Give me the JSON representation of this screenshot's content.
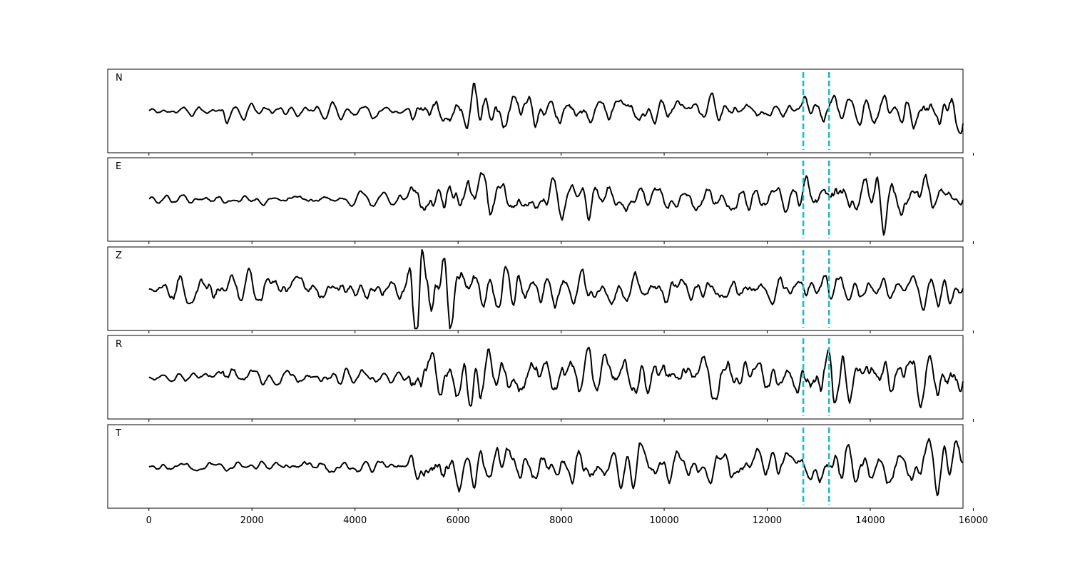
{
  "chart_data": {
    "type": "line",
    "x_range": [
      -800,
      15800
    ],
    "xticks": [
      0,
      2000,
      4000,
      6000,
      8000,
      10000,
      12000,
      14000,
      16000
    ],
    "x_tick_labels": [
      "0",
      "2000",
      "4000",
      "6000",
      "8000",
      "10000",
      "12000",
      "14000",
      "16000"
    ],
    "grid": false,
    "legend": "none",
    "x_extent": [
      0,
      15800
    ],
    "marker_lines": [
      12700,
      13200
    ],
    "colors": {
      "trace": "#000000",
      "marker": "#17becf",
      "frame": "#000000"
    },
    "panels": [
      {
        "label": "N",
        "ylim": [
          -1.1,
          1.1
        ],
        "envelope": [
          [
            0,
            0.08
          ],
          [
            1400,
            0.12
          ],
          [
            1500,
            0.5
          ],
          [
            1600,
            0.15
          ],
          [
            5000,
            0.15
          ],
          [
            5100,
            0.45
          ],
          [
            6400,
            0.55
          ],
          [
            8400,
            0.4
          ],
          [
            11000,
            0.3
          ],
          [
            12500,
            0.25
          ],
          [
            12800,
            0.45
          ],
          [
            13700,
            0.5
          ],
          [
            14600,
            0.6
          ],
          [
            15000,
            0.85
          ],
          [
            15200,
            0.9
          ],
          [
            15600,
            1.0
          ],
          [
            15800,
            0.6
          ]
        ]
      },
      {
        "label": "E",
        "ylim": [
          -1.1,
          1.1
        ],
        "envelope": [
          [
            0,
            0.1
          ],
          [
            5000,
            0.15
          ],
          [
            5100,
            0.5
          ],
          [
            6000,
            0.55
          ],
          [
            7500,
            0.45
          ],
          [
            9000,
            0.4
          ],
          [
            12500,
            0.3
          ],
          [
            12900,
            0.5
          ],
          [
            13800,
            0.7
          ],
          [
            14000,
            0.95
          ],
          [
            14600,
            0.85
          ],
          [
            15400,
            0.6
          ],
          [
            15800,
            0.4
          ]
        ]
      },
      {
        "label": "Z",
        "ylim": [
          -1.1,
          1.1
        ],
        "envelope": [
          [
            0,
            0.05
          ],
          [
            400,
            0.3
          ],
          [
            500,
            0.65
          ],
          [
            700,
            0.35
          ],
          [
            5000,
            0.3
          ],
          [
            5100,
            1.0
          ],
          [
            5900,
            0.85
          ],
          [
            6200,
            0.55
          ],
          [
            7000,
            0.45
          ],
          [
            10000,
            0.35
          ],
          [
            12500,
            0.3
          ],
          [
            13000,
            0.35
          ],
          [
            14500,
            0.4
          ],
          [
            15000,
            0.55
          ],
          [
            15600,
            0.6
          ],
          [
            15800,
            0.5
          ]
        ]
      },
      {
        "label": "R",
        "ylim": [
          -1.1,
          1.1
        ],
        "envelope": [
          [
            0,
            0.08
          ],
          [
            1400,
            0.15
          ],
          [
            1500,
            0.5
          ],
          [
            1700,
            0.2
          ],
          [
            5000,
            0.15
          ],
          [
            5100,
            0.65
          ],
          [
            6500,
            0.55
          ],
          [
            8000,
            0.5
          ],
          [
            11000,
            0.45
          ],
          [
            12500,
            0.35
          ],
          [
            12800,
            0.6
          ],
          [
            14000,
            0.65
          ],
          [
            14600,
            0.95
          ],
          [
            15300,
            0.9
          ],
          [
            15600,
            1.0
          ],
          [
            15800,
            0.6
          ]
        ]
      },
      {
        "label": "T",
        "ylim": [
          -1.1,
          1.1
        ],
        "envelope": [
          [
            0,
            0.08
          ],
          [
            5000,
            0.2
          ],
          [
            5300,
            0.55
          ],
          [
            6000,
            0.5
          ],
          [
            8000,
            0.4
          ],
          [
            12500,
            0.35
          ],
          [
            13000,
            0.45
          ],
          [
            13600,
            0.55
          ],
          [
            14000,
            0.7
          ],
          [
            14600,
            0.65
          ],
          [
            15000,
            0.85
          ],
          [
            15400,
            1.0
          ],
          [
            15600,
            0.95
          ],
          [
            15800,
            0.7
          ]
        ]
      }
    ]
  }
}
